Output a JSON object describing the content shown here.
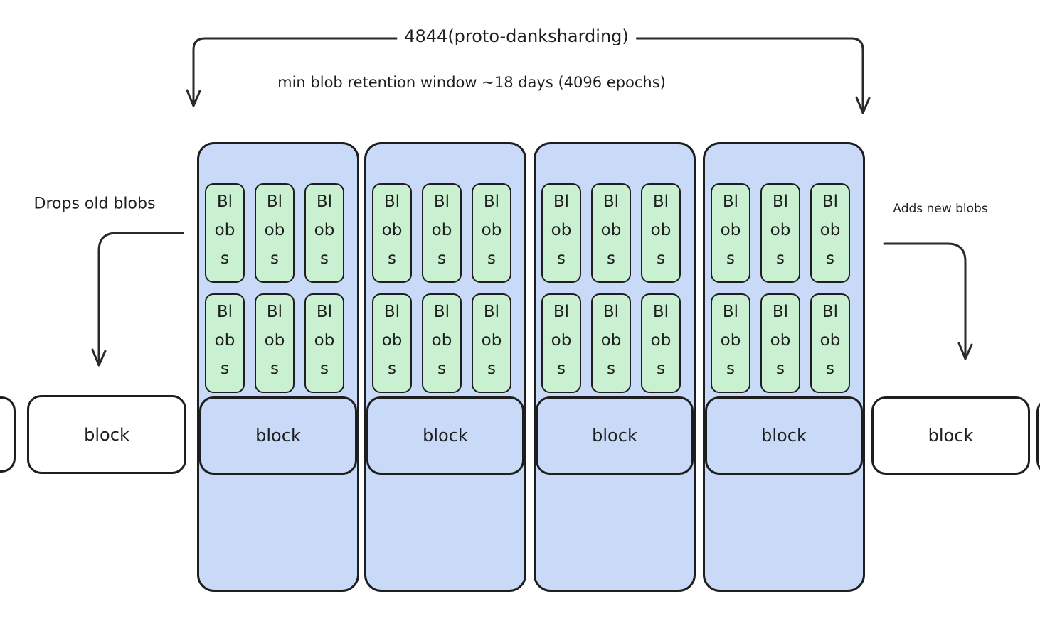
{
  "diagram": {
    "title": "4844(proto-danksharding)",
    "caption": "min blob retention window ~18 days (4096 epochs)",
    "left_annotation": "Drops old blobs",
    "right_annotation": "Adds new blobs"
  },
  "slots": [
    {
      "blobs": [
        "Blobs",
        "Blobs",
        "Blobs",
        "Blobs",
        "Blobs",
        "Blobs"
      ],
      "block_label": "block"
    },
    {
      "blobs": [
        "Blobs",
        "Blobs",
        "Blobs",
        "Blobs",
        "Blobs",
        "Blobs"
      ],
      "block_label": "block"
    },
    {
      "blobs": [
        "Blobs",
        "Blobs",
        "Blobs",
        "Blobs",
        "Blobs",
        "Blobs"
      ],
      "block_label": "block"
    },
    {
      "blobs": [
        "Blobs",
        "Blobs",
        "Blobs",
        "Blobs",
        "Blobs",
        "Blobs"
      ],
      "block_label": "block"
    }
  ],
  "edge_blocks": {
    "left_label": "block",
    "right_label": "block"
  },
  "colors": {
    "slot_fill": "#c9d9f8",
    "blob_fill": "#c8f0d1",
    "block_fill": "#ffffff",
    "stroke": "#1e1e1e",
    "arrow": "#2a2a2a"
  }
}
